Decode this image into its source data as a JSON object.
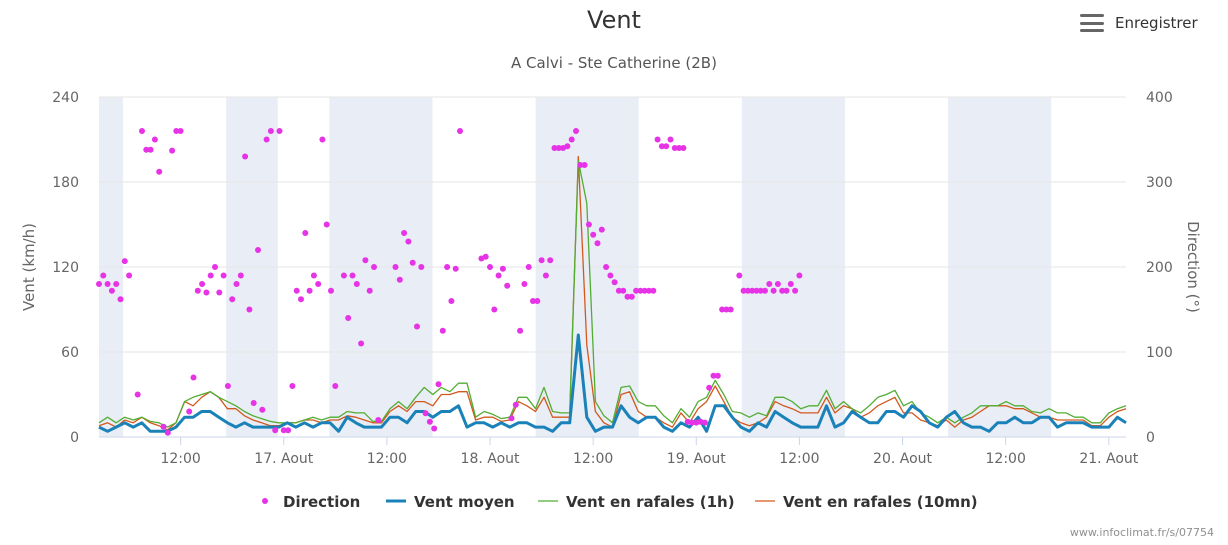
{
  "header": {
    "title": "Vent",
    "subtitle": "A Calvi - Ste Catherine (2B)",
    "menu_label": "Enregistrer"
  },
  "credit": "www.infoclimat.fr/s/07754",
  "chart_data": {
    "type": "line",
    "x_range_hours": [
      -21.5,
      98
    ],
    "x_ticks": [
      {
        "h": -12,
        "label": "12:00"
      },
      {
        "h": 0,
        "label": "17. Aout"
      },
      {
        "h": 12,
        "label": "12:00"
      },
      {
        "h": 24,
        "label": "18. Aout"
      },
      {
        "h": 36,
        "label": "12:00"
      },
      {
        "h": 48,
        "label": "19. Aout"
      },
      {
        "h": 60,
        "label": "12:00"
      },
      {
        "h": 72,
        "label": "20. Aout"
      },
      {
        "h": 84,
        "label": "12:00"
      },
      {
        "h": 96,
        "label": "21. Aout"
      }
    ],
    "night_bands": [
      [
        -21.5,
        -18.7
      ],
      [
        -6.7,
        -0.7
      ],
      [
        5.3,
        17.3
      ],
      [
        29.3,
        41.3
      ],
      [
        53.3,
        65.3
      ],
      [
        77.3,
        89.3
      ]
    ],
    "night_color": "#e9edf6",
    "y_left": {
      "label": "Vent (km/h)",
      "min": 0,
      "max": 240,
      "ticks": [
        0,
        60,
        120,
        180,
        240
      ]
    },
    "y_right": {
      "label": "Direction (°)",
      "min": 0,
      "max": 400,
      "ticks": [
        0,
        100,
        200,
        300,
        400
      ]
    },
    "grid": true,
    "legend_position": "bottom",
    "series": [
      {
        "name": "Direction",
        "kind": "scatter",
        "axis": "right",
        "color": "#e633e6",
        "points": [
          [
            -21.5,
            180
          ],
          [
            -21,
            190
          ],
          [
            -20.5,
            180
          ],
          [
            -20,
            172
          ],
          [
            -19.5,
            180
          ],
          [
            -19,
            162
          ],
          [
            -18.5,
            207
          ],
          [
            -18,
            190
          ],
          [
            -17,
            50
          ],
          [
            -16.5,
            360
          ],
          [
            -16,
            338
          ],
          [
            -15.5,
            338
          ],
          [
            -15,
            350
          ],
          [
            -14.5,
            312
          ],
          [
            -14,
            12
          ],
          [
            -13.5,
            5
          ],
          [
            -13,
            337
          ],
          [
            -12.5,
            360
          ],
          [
            -12,
            360
          ],
          [
            -11,
            30
          ],
          [
            -10.5,
            70
          ],
          [
            -10,
            172
          ],
          [
            -9.5,
            180
          ],
          [
            -9,
            170
          ],
          [
            -8.5,
            190
          ],
          [
            -8,
            200
          ],
          [
            -7.5,
            170
          ],
          [
            -7,
            190
          ],
          [
            -6.5,
            60
          ],
          [
            -6,
            162
          ],
          [
            -5.5,
            180
          ],
          [
            -5,
            190
          ],
          [
            -4.5,
            330
          ],
          [
            -4,
            150
          ],
          [
            -3.5,
            40
          ],
          [
            -3,
            220
          ],
          [
            -2.5,
            32
          ],
          [
            -2,
            350
          ],
          [
            -1.5,
            360
          ],
          [
            -1,
            8
          ],
          [
            -0.5,
            360
          ],
          [
            0,
            8
          ],
          [
            0.5,
            8
          ],
          [
            1,
            60
          ],
          [
            1.5,
            172
          ],
          [
            2,
            162
          ],
          [
            2.5,
            240
          ],
          [
            3,
            172
          ],
          [
            3.5,
            190
          ],
          [
            4,
            180
          ],
          [
            4.5,
            350
          ],
          [
            5,
            250
          ],
          [
            5.5,
            172
          ],
          [
            6,
            60
          ],
          [
            7,
            190
          ],
          [
            7.5,
            140
          ],
          [
            8,
            190
          ],
          [
            8.5,
            180
          ],
          [
            9,
            110
          ],
          [
            9.5,
            208
          ],
          [
            10,
            172
          ],
          [
            10.5,
            200
          ],
          [
            11,
            20
          ],
          [
            13,
            200
          ],
          [
            13.5,
            185
          ],
          [
            14,
            240
          ],
          [
            14.5,
            230
          ],
          [
            15,
            205
          ],
          [
            15.5,
            130
          ],
          [
            16,
            200
          ],
          [
            16.5,
            28
          ],
          [
            17,
            18
          ],
          [
            17.5,
            10
          ],
          [
            18,
            62
          ],
          [
            18.5,
            125
          ],
          [
            19,
            200
          ],
          [
            19.5,
            160
          ],
          [
            20,
            198
          ],
          [
            20.5,
            360
          ],
          [
            23,
            210
          ],
          [
            23.5,
            212
          ],
          [
            24,
            200
          ],
          [
            24.5,
            150
          ],
          [
            25,
            190
          ],
          [
            25.5,
            198
          ],
          [
            26,
            178
          ],
          [
            26.5,
            22
          ],
          [
            27,
            38
          ],
          [
            27.5,
            125
          ],
          [
            28,
            180
          ],
          [
            28.5,
            200
          ],
          [
            29,
            160
          ],
          [
            29.5,
            160
          ],
          [
            30,
            208
          ],
          [
            30.5,
            190
          ],
          [
            31,
            208
          ],
          [
            31.5,
            340
          ],
          [
            32,
            340
          ],
          [
            32.5,
            340
          ],
          [
            33,
            342
          ],
          [
            33.5,
            350
          ],
          [
            34,
            360
          ],
          [
            34.5,
            320
          ],
          [
            35,
            320
          ],
          [
            35.5,
            250
          ],
          [
            36,
            238
          ],
          [
            36.5,
            228
          ],
          [
            37,
            244
          ],
          [
            37.5,
            200
          ],
          [
            38,
            190
          ],
          [
            38.5,
            182
          ],
          [
            39,
            172
          ],
          [
            39.5,
            172
          ],
          [
            40,
            165
          ],
          [
            40.5,
            165
          ],
          [
            41,
            172
          ],
          [
            41.5,
            172
          ],
          [
            42,
            172
          ],
          [
            42.5,
            172
          ],
          [
            43,
            172
          ],
          [
            43.5,
            350
          ],
          [
            44,
            342
          ],
          [
            44.5,
            342
          ],
          [
            45,
            350
          ],
          [
            45.5,
            340
          ],
          [
            46,
            340
          ],
          [
            46.5,
            340
          ],
          [
            47,
            18
          ],
          [
            47.5,
            17
          ],
          [
            48,
            17
          ],
          [
            48.5,
            18
          ],
          [
            49,
            17
          ],
          [
            49.5,
            58
          ],
          [
            50,
            72
          ],
          [
            50.5,
            72
          ],
          [
            51,
            150
          ],
          [
            51.5,
            150
          ],
          [
            52,
            150
          ],
          [
            53,
            190
          ],
          [
            53.5,
            172
          ],
          [
            54,
            172
          ],
          [
            54.5,
            172
          ],
          [
            55,
            172
          ],
          [
            55.5,
            172
          ],
          [
            56,
            172
          ],
          [
            56.5,
            180
          ],
          [
            57,
            172
          ],
          [
            57.5,
            180
          ],
          [
            58,
            172
          ],
          [
            58.5,
            172
          ],
          [
            59,
            180
          ],
          [
            59.5,
            172
          ],
          [
            60,
            190
          ]
        ]
      },
      {
        "name": "Vent moyen",
        "kind": "line",
        "axis": "left",
        "color": "#1a82b8",
        "stroke": 3,
        "values": [
          7,
          4,
          7,
          10,
          7,
          10,
          4,
          4,
          4,
          7,
          14,
          14,
          18,
          18,
          14,
          10,
          7,
          10,
          7,
          7,
          7,
          7,
          10,
          7,
          10,
          7,
          10,
          10,
          4,
          14,
          10,
          7,
          7,
          7,
          14,
          14,
          10,
          18,
          18,
          14,
          18,
          18,
          22,
          7,
          10,
          10,
          7,
          10,
          7,
          10,
          10,
          7,
          7,
          4,
          10,
          10,
          72,
          14,
          4,
          7,
          7,
          22,
          14,
          10,
          14,
          14,
          7,
          4,
          10,
          7,
          14,
          4,
          22,
          22,
          14,
          7,
          4,
          10,
          7,
          18,
          14,
          10,
          7,
          7,
          7,
          22,
          7,
          10,
          18,
          14,
          10,
          10,
          18,
          18,
          14,
          22,
          18,
          10,
          7,
          14,
          18,
          10,
          7,
          7,
          4,
          10,
          10,
          14,
          10,
          10,
          14,
          14,
          7,
          10,
          10,
          10,
          7,
          7,
          7,
          14,
          10
        ]
      },
      {
        "name": "Vent en rafales (1h)",
        "kind": "line",
        "axis": "left",
        "color": "#52ad33",
        "stroke": 1.3,
        "values": [
          10,
          14,
          10,
          14,
          12,
          14,
          11,
          10,
          7,
          10,
          25,
          28,
          30,
          32,
          28,
          25,
          22,
          18,
          15,
          13,
          11,
          10,
          10,
          10,
          12,
          14,
          12,
          14,
          14,
          18,
          17,
          17,
          11,
          11,
          20,
          25,
          20,
          28,
          35,
          30,
          35,
          32,
          38,
          38,
          14,
          18,
          16,
          13,
          14,
          28,
          28,
          20,
          35,
          18,
          17,
          17,
          195,
          165,
          25,
          15,
          10,
          35,
          36,
          25,
          22,
          22,
          15,
          10,
          20,
          14,
          25,
          28,
          40,
          30,
          18,
          17,
          14,
          17,
          15,
          28,
          28,
          25,
          20,
          22,
          22,
          33,
          20,
          25,
          20,
          17,
          22,
          28,
          30,
          33,
          22,
          25,
          17,
          14,
          10,
          14,
          10,
          14,
          17,
          22,
          22,
          22,
          25,
          22,
          22,
          18,
          17,
          20,
          17,
          17,
          14,
          14,
          10,
          10,
          17,
          20,
          22
        ]
      },
      {
        "name": "Vent en rafales (10mn)",
        "kind": "line",
        "axis": "left",
        "color": "#d2591e",
        "stroke": 1.3,
        "values": [
          8,
          10,
          7,
          12,
          10,
          14,
          10,
          8,
          5,
          10,
          25,
          22,
          28,
          32,
          28,
          20,
          20,
          15,
          12,
          10,
          8,
          8,
          10,
          10,
          12,
          12,
          10,
          12,
          12,
          15,
          14,
          12,
          10,
          10,
          18,
          22,
          18,
          25,
          25,
          22,
          30,
          30,
          32,
          32,
          12,
          14,
          14,
          11,
          12,
          25,
          22,
          18,
          28,
          14,
          14,
          14,
          198,
          65,
          18,
          10,
          7,
          30,
          32,
          18,
          14,
          14,
          10,
          7,
          17,
          10,
          20,
          25,
          36,
          25,
          14,
          10,
          8,
          10,
          14,
          25,
          22,
          20,
          17,
          17,
          17,
          28,
          17,
          22,
          20,
          14,
          17,
          22,
          25,
          28,
          17,
          17,
          12,
          10,
          8,
          12,
          7,
          12,
          14,
          18,
          22,
          22,
          22,
          20,
          20,
          17,
          14,
          14,
          12,
          12,
          12,
          12,
          8,
          8,
          14,
          18,
          20
        ]
      }
    ]
  }
}
